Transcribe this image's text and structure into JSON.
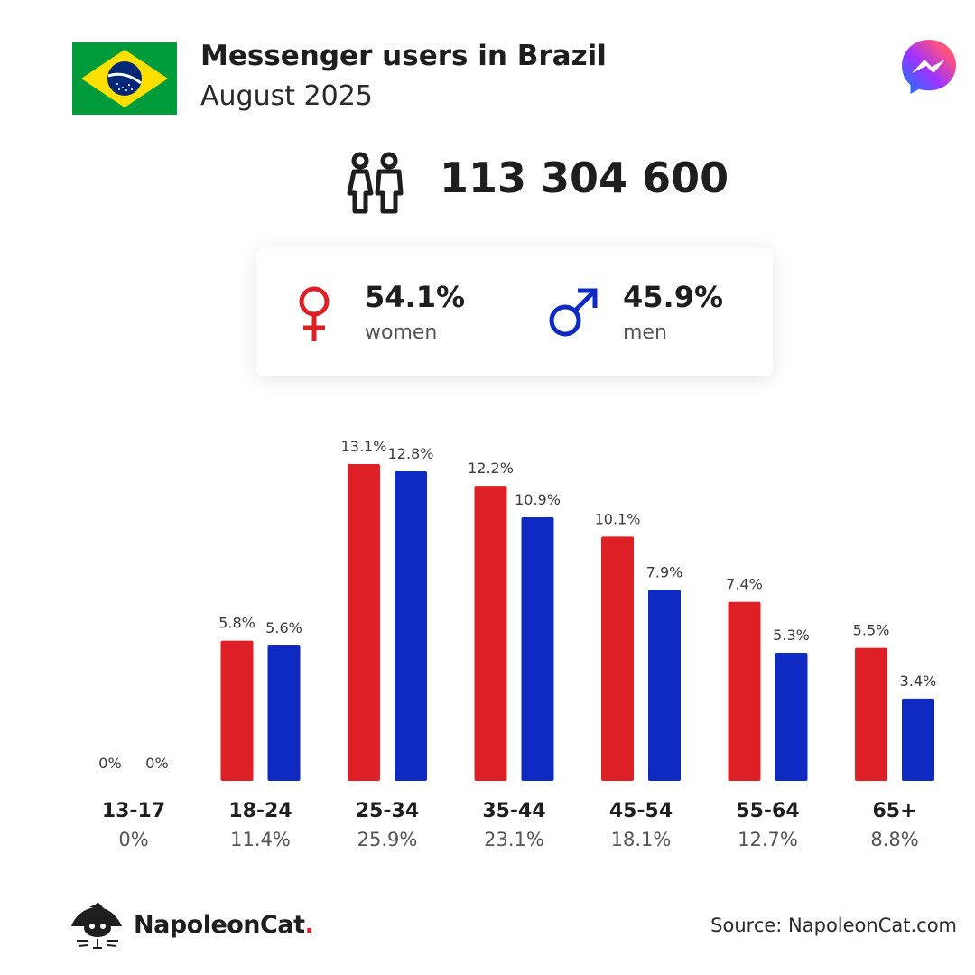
{
  "header": {
    "title": "Messenger users in Brazil",
    "subtitle": "August 2025",
    "flag_icon": "brazil-flag-icon",
    "logo_icon": "messenger-logo-icon"
  },
  "total": {
    "icon": "users-icon",
    "value": "113 304 600"
  },
  "gender": {
    "women": {
      "pct": "54.1%",
      "label": "women",
      "color": "#dd1f26",
      "icon": "female-icon"
    },
    "men": {
      "pct": "45.9%",
      "label": "men",
      "color": "#0f2ac3",
      "icon": "male-icon"
    }
  },
  "chart_data": {
    "type": "bar",
    "categories": [
      "13-17",
      "18-24",
      "25-34",
      "35-44",
      "45-54",
      "55-64",
      "65+"
    ],
    "group_totals": [
      "0%",
      "11.4%",
      "25.9%",
      "23.1%",
      "18.1%",
      "12.7%",
      "8.8%"
    ],
    "series": [
      {
        "color": "#dd1f26",
        "values": [
          0,
          5.8,
          13.1,
          12.2,
          10.1,
          7.4,
          5.5
        ],
        "labels": [
          "0%",
          "5.8%",
          "13.1%",
          "12.2%",
          "10.1%",
          "7.4%",
          "5.5%"
        ]
      },
      {
        "color": "#0f2ac3",
        "values": [
          0,
          5.6,
          12.8,
          10.9,
          7.9,
          5.3,
          3.4
        ],
        "labels": [
          "0%",
          "5.6%",
          "12.8%",
          "10.9%",
          "7.9%",
          "5.3%",
          "3.4%"
        ]
      }
    ],
    "ylim": [
      0,
      13.1
    ],
    "grid": false,
    "legend": "none"
  },
  "footer": {
    "brand_name": "NapoleonCat",
    "brand_dot": ".",
    "source": "Source: NapoleonCat.com",
    "logo_icon": "napoleoncat-logo-icon"
  }
}
